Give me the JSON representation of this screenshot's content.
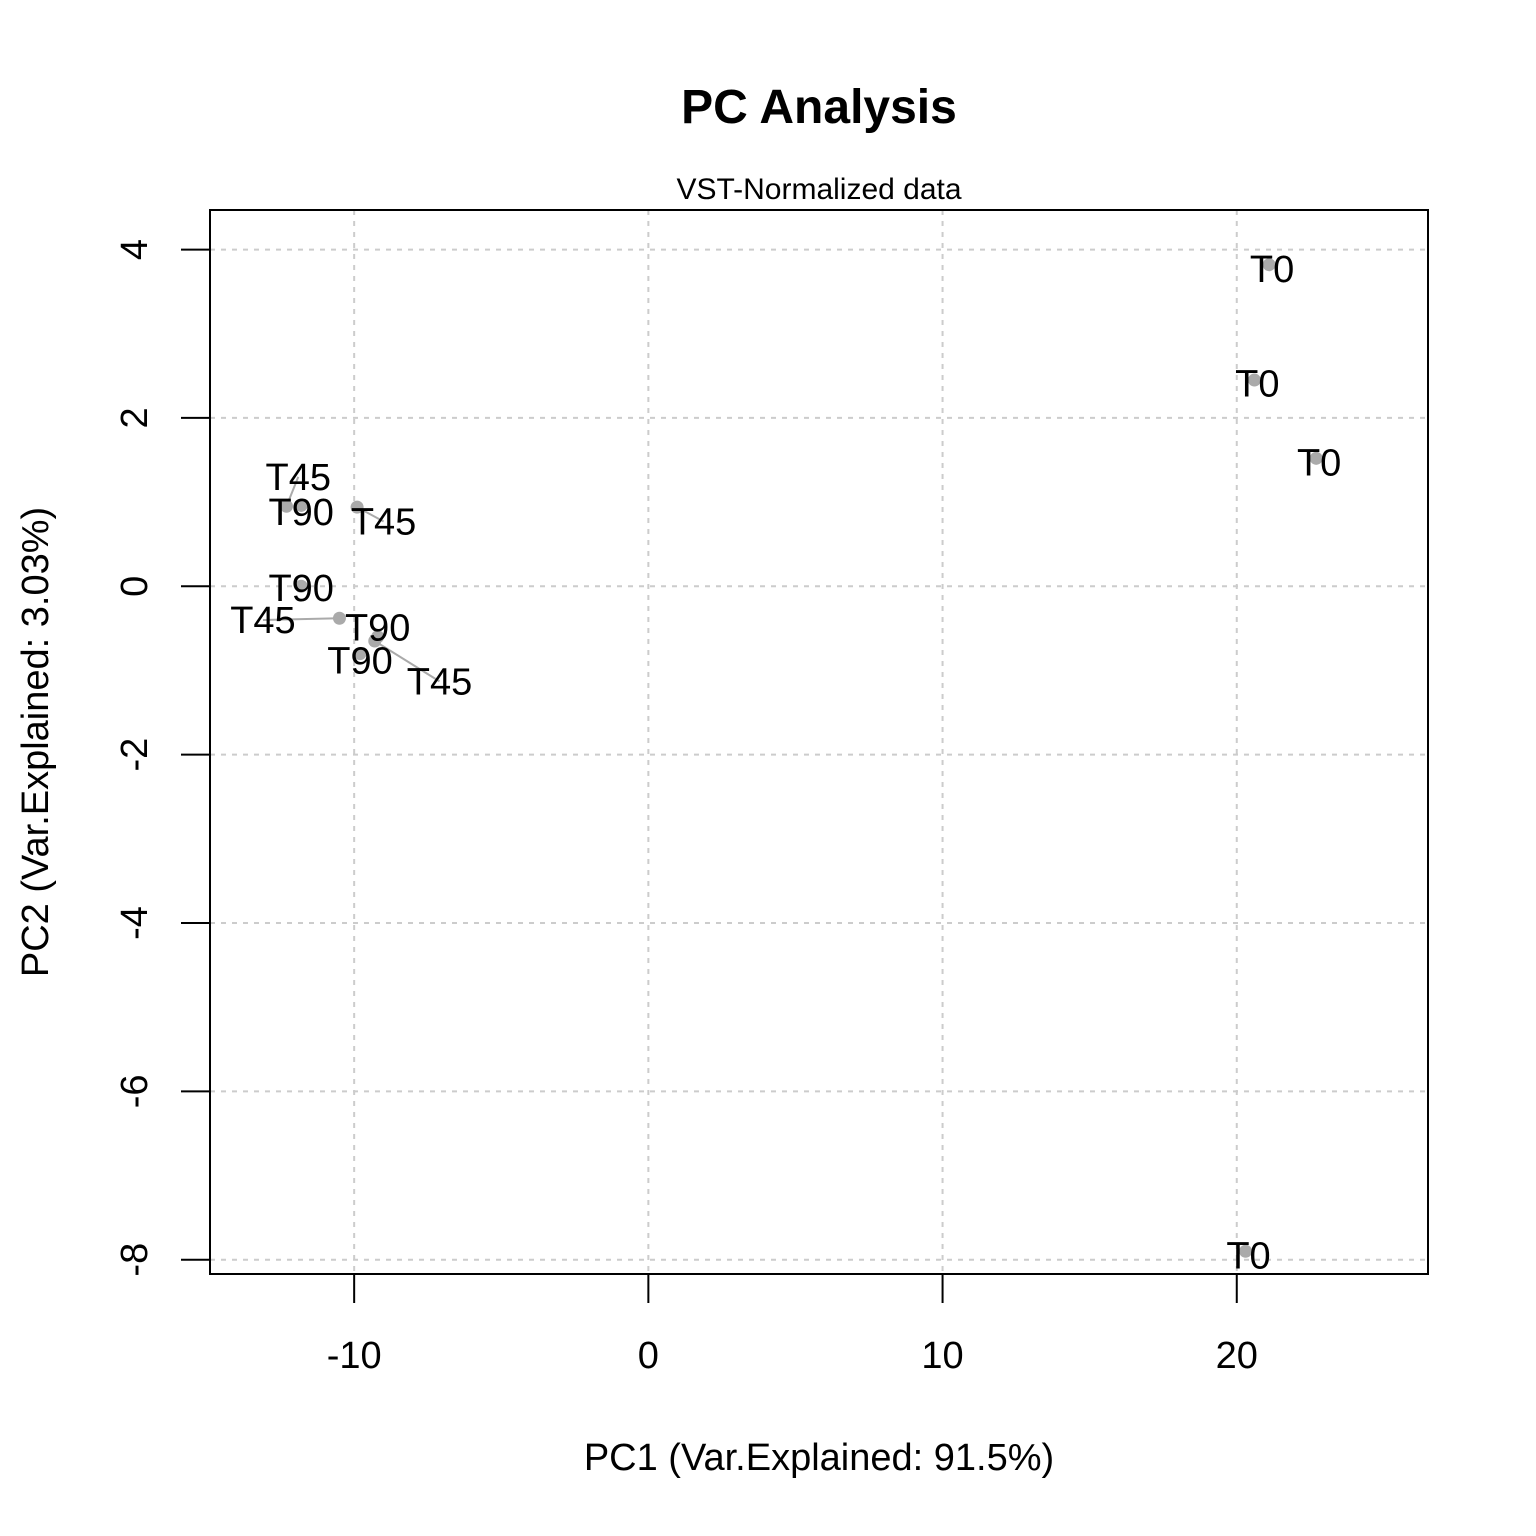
{
  "chart_data": {
    "type": "scatter",
    "title": "PC Analysis",
    "subtitle": "VST-Normalized data",
    "xlabel": "PC1 (Var.Explained: 91.5%)",
    "ylabel": "PC2 (Var.Explained: 3.03%)",
    "xlim": [
      -14.9,
      26.5
    ],
    "ylim": [
      -8.17,
      4.47
    ],
    "xticks": [
      -10,
      0,
      10,
      20
    ],
    "yticks": [
      -8,
      -6,
      -4,
      -2,
      0,
      2,
      4
    ],
    "grid": true,
    "point_color": "#aaaaaa",
    "points": [
      {
        "label": "T0",
        "x": 21.1,
        "y": 3.82,
        "lx": 21.2,
        "ly": 3.77
      },
      {
        "label": "T0",
        "x": 20.6,
        "y": 2.45,
        "lx": 20.7,
        "ly": 2.41
      },
      {
        "label": "T0",
        "x": 22.7,
        "y": 1.52,
        "lx": 22.8,
        "ly": 1.47
      },
      {
        "label": "T0",
        "x": 20.3,
        "y": -7.9,
        "lx": 20.4,
        "ly": -7.95
      },
      {
        "label": "T45",
        "x": -12.3,
        "y": 0.95,
        "lx": -11.9,
        "ly": 1.3
      },
      {
        "label": "T90",
        "x": -11.8,
        "y": 0.96,
        "lx": -11.8,
        "ly": 0.88
      },
      {
        "label": "T45",
        "x": -9.9,
        "y": 0.94,
        "lx": -9.0,
        "ly": 0.77
      },
      {
        "label": "T90",
        "x": -11.8,
        "y": 0.0,
        "lx": -11.8,
        "ly": -0.02
      },
      {
        "label": "T45",
        "x": -10.5,
        "y": -0.38,
        "lx": -13.1,
        "ly": -0.4
      },
      {
        "label": "T90",
        "x": -9.2,
        "y": -0.6,
        "lx": -9.2,
        "ly": -0.49
      },
      {
        "label": "T90",
        "x": -9.8,
        "y": -0.8,
        "lx": -9.8,
        "ly": -0.88
      },
      {
        "label": "T45",
        "x": -9.3,
        "y": -0.65,
        "lx": -7.1,
        "ly": -1.13
      }
    ]
  }
}
